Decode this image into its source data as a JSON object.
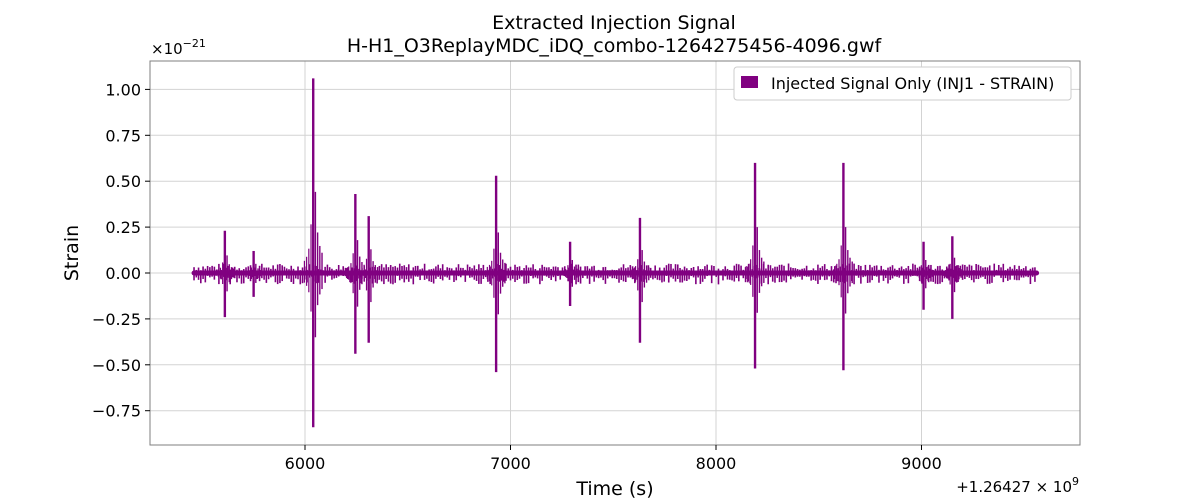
{
  "chart_data": {
    "type": "line",
    "title": "Extracted Injection Signal",
    "subtitle": "H-H1_O3ReplayMDC_iDQ_combo-1264275456-4096.gwf",
    "xlabel": "Time (s)",
    "ylabel": "Strain",
    "x_offset_label": "+1.26427 × 10",
    "x_offset_exponent": "9",
    "y_multiplier_label": "×10",
    "y_multiplier_exponent": "−21",
    "xlim": [
      5300,
      9300
    ],
    "ylim": [
      -0.93,
      1.15
    ],
    "x_ticks": [
      {
        "value": 6000,
        "label": "6000"
      },
      {
        "value": 7000,
        "label": "7000"
      },
      {
        "value": 8000,
        "label": "8000"
      },
      {
        "value": 9000,
        "label": "9000"
      }
    ],
    "y_ticks": [
      {
        "value": -0.75,
        "label": "−0.75"
      },
      {
        "value": -0.5,
        "label": "−0.50"
      },
      {
        "value": -0.25,
        "label": "−0.25"
      },
      {
        "value": 0.0,
        "label": "0.00"
      },
      {
        "value": 0.25,
        "label": "0.25"
      },
      {
        "value": 0.5,
        "label": "0.50"
      },
      {
        "value": 0.75,
        "label": "0.75"
      },
      {
        "value": 1.0,
        "label": "1.00"
      }
    ],
    "grid": true,
    "legend_position": "upper-right",
    "series": [
      {
        "name": "Injected Signal Only (INJ1 - STRAIN)",
        "color": "#800080",
        "x_range": [
          5460,
          9560
        ],
        "baseline_amplitude": 0.015,
        "bursts": [
          {
            "t": 5610,
            "hi": 0.23,
            "lo": -0.24
          },
          {
            "t": 5750,
            "hi": 0.12,
            "lo": -0.13
          },
          {
            "t": 6040,
            "hi": 1.06,
            "lo": -0.84
          },
          {
            "t": 6245,
            "hi": 0.43,
            "lo": -0.44
          },
          {
            "t": 6310,
            "hi": 0.31,
            "lo": -0.38
          },
          {
            "t": 6930,
            "hi": 0.53,
            "lo": -0.54
          },
          {
            "t": 7290,
            "hi": 0.17,
            "lo": -0.18
          },
          {
            "t": 7630,
            "hi": 0.3,
            "lo": -0.38
          },
          {
            "t": 8190,
            "hi": 0.6,
            "lo": -0.52
          },
          {
            "t": 8620,
            "hi": 0.6,
            "lo": -0.53
          },
          {
            "t": 9010,
            "hi": 0.17,
            "lo": -0.2
          },
          {
            "t": 9150,
            "hi": 0.2,
            "lo": -0.25
          }
        ]
      }
    ]
  }
}
